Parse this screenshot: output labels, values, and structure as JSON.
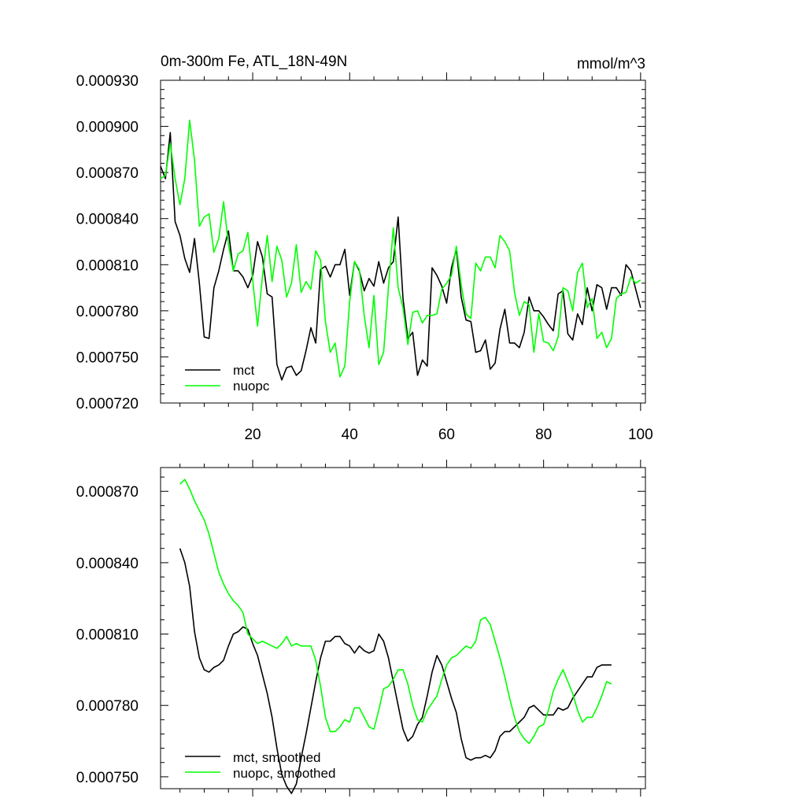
{
  "chart_data": [
    {
      "type": "line",
      "title": "0m-300m Fe, ATL_18N-49N",
      "units": "mmol/m^3",
      "xlabel": "",
      "ylabel": "",
      "xlim": [
        1,
        101
      ],
      "ylim": [
        0.00072,
        0.00093
      ],
      "yticks": [
        0.00072,
        0.00075,
        0.00078,
        0.00081,
        0.00084,
        0.00087,
        0.0009,
        0.00093
      ],
      "yticklabels": [
        "0.000720",
        "0.000750",
        "0.000780",
        "0.000810",
        "0.000840",
        "0.000870",
        "0.000900",
        "0.000930"
      ],
      "xticks": [
        20,
        40,
        60,
        80,
        100
      ],
      "xticklabels": [
        "20",
        "40",
        "60",
        "80",
        "100"
      ],
      "legend": "bottom-left",
      "grid": false,
      "series": [
        {
          "name": "mct",
          "color": "#000000",
          "values": [
            0.000874,
            0.000866,
            0.000896,
            0.000838,
            0.000829,
            0.000814,
            0.000805,
            0.000827,
            0.000798,
            0.000763,
            0.000762,
            0.000795,
            0.000806,
            0.00082,
            0.000832,
            0.000806,
            0.000806,
            0.000802,
            0.000795,
            0.000803,
            0.000825,
            0.000815,
            0.000791,
            0.000789,
            0.000745,
            0.000735,
            0.000743,
            0.000744,
            0.000738,
            0.000741,
            0.000754,
            0.000769,
            0.000759,
            0.000807,
            0.000809,
            0.000802,
            0.00081,
            0.00081,
            0.00082,
            0.00079,
            0.000812,
            0.000806,
            0.000793,
            0.000801,
            0.000796,
            0.000812,
            0.000798,
            0.000808,
            0.000812,
            0.000841,
            0.000788,
            0.000762,
            0.000766,
            0.000738,
            0.000748,
            0.000744,
            0.000808,
            0.000803,
            0.000796,
            0.000785,
            0.000808,
            0.00082,
            0.000789,
            0.000774,
            0.000773,
            0.000753,
            0.000754,
            0.000761,
            0.000742,
            0.000746,
            0.000768,
            0.000781,
            0.000759,
            0.000759,
            0.000756,
            0.000766,
            0.000789,
            0.00078,
            0.00078,
            0.000776,
            0.000771,
            0.000767,
            0.000791,
            0.000793,
            0.000765,
            0.000761,
            0.000778,
            0.000771,
            0.000795,
            0.00078,
            0.000797,
            0.000795,
            0.000781,
            0.000795,
            0.000795,
            0.00079,
            0.00081,
            0.000806,
            0.000794,
            0.000782
          ]
        },
        {
          "name": "nuopc",
          "color": "#00ff00",
          "values": [
            0.000866,
            0.000868,
            0.000889,
            0.000866,
            0.000849,
            0.000866,
            0.000904,
            0.000878,
            0.000835,
            0.000841,
            0.000843,
            0.000818,
            0.000827,
            0.000851,
            0.000823,
            0.000806,
            0.000817,
            0.000819,
            0.000831,
            0.0008,
            0.00077,
            0.000802,
            0.000829,
            0.000799,
            0.000822,
            0.000813,
            0.000789,
            0.000798,
            0.000823,
            0.000792,
            0.000799,
            0.000794,
            0.000819,
            0.000813,
            0.000773,
            0.000753,
            0.000759,
            0.000737,
            0.000744,
            0.000786,
            0.000812,
            0.000807,
            0.000777,
            0.000756,
            0.00079,
            0.000745,
            0.000753,
            0.000795,
            0.000834,
            0.000795,
            0.000782,
            0.000758,
            0.000779,
            0.00078,
            0.000772,
            0.000777,
            0.000777,
            0.000778,
            0.000794,
            0.000798,
            0.000803,
            0.000822,
            0.000797,
            0.000778,
            0.000775,
            0.000811,
            0.000806,
            0.000815,
            0.000815,
            0.000808,
            0.000829,
            0.000825,
            0.000819,
            0.000792,
            0.000777,
            0.000786,
            0.000784,
            0.000753,
            0.000778,
            0.00076,
            0.000759,
            0.000754,
            0.000763,
            0.000795,
            0.000793,
            0.00078,
            0.000805,
            0.000811,
            0.000782,
            0.000788,
            0.000762,
            0.000766,
            0.000756,
            0.000762,
            0.000788,
            0.000791,
            0.000792,
            0.000802,
            0.000798,
            0.0008
          ]
        }
      ]
    },
    {
      "type": "line",
      "title": "",
      "xlabel": "",
      "ylabel": "",
      "xlim": [
        1,
        101
      ],
      "ylim": [
        0.000745,
        0.00088
      ],
      "yticks": [
        0.00075,
        0.00078,
        0.00081,
        0.00084,
        0.00087
      ],
      "yticklabels": [
        "0.000750",
        "0.000780",
        "0.000810",
        "0.000840",
        "0.000870"
      ],
      "xticks": [
        20,
        40,
        60,
        80,
        100
      ],
      "legend": "bottom-left",
      "grid": false,
      "series": [
        {
          "name": "mct, smoothed",
          "color": "#000000",
          "x_start": 5,
          "values": [
            0.000846,
            0.00084,
            0.00083,
            0.000811,
            0.0008,
            0.000795,
            0.000794,
            0.000796,
            0.000797,
            0.000799,
            0.000805,
            0.00081,
            0.000811,
            0.000813,
            0.000812,
            0.000806,
            0.000801,
            0.000793,
            0.000785,
            0.000775,
            0.000762,
            0.000751,
            0.000746,
            0.000743,
            0.000747,
            0.000758,
            0.000768,
            0.000779,
            0.00079,
            0.0008,
            0.000807,
            0.000807,
            0.000809,
            0.000809,
            0.000806,
            0.000805,
            0.000802,
            0.000805,
            0.000803,
            0.000802,
            0.000803,
            0.00081,
            0.000807,
            0.0008,
            0.00079,
            0.00078,
            0.00077,
            0.000765,
            0.000767,
            0.000772,
            0.000775,
            0.000784,
            0.000794,
            0.000801,
            0.000797,
            0.00079,
            0.000783,
            0.000777,
            0.000766,
            0.000758,
            0.000757,
            0.000758,
            0.000758,
            0.000759,
            0.000758,
            0.000761,
            0.000767,
            0.000769,
            0.000769,
            0.000771,
            0.000773,
            0.000775,
            0.000779,
            0.00078,
            0.000778,
            0.000776,
            0.000776,
            0.000776,
            0.000779,
            0.000778,
            0.000779,
            0.000783,
            0.000786,
            0.000789,
            0.000792,
            0.000792,
            0.000796,
            0.000797,
            0.000797,
            0.000797
          ]
        },
        {
          "name": "nuopc, smoothed",
          "color": "#00ff00",
          "x_start": 5,
          "values": [
            0.000873,
            0.000875,
            0.000871,
            0.000866,
            0.000862,
            0.000858,
            0.000852,
            0.000844,
            0.000836,
            0.000831,
            0.000827,
            0.000824,
            0.000822,
            0.000819,
            0.00081,
            0.000808,
            0.000806,
            0.000807,
            0.000806,
            0.000805,
            0.000804,
            0.000806,
            0.000809,
            0.000805,
            0.000806,
            0.000805,
            0.000805,
            0.000805,
            0.000799,
            0.000788,
            0.000775,
            0.000769,
            0.000769,
            0.000771,
            0.000774,
            0.000773,
            0.000779,
            0.000779,
            0.000775,
            0.000771,
            0.00077,
            0.000778,
            0.000787,
            0.000788,
            0.000791,
            0.000795,
            0.000795,
            0.000789,
            0.00078,
            0.000774,
            0.000773,
            0.000778,
            0.000781,
            0.000784,
            0.000791,
            0.000797,
            0.0008,
            0.000801,
            0.000803,
            0.000805,
            0.000804,
            0.000807,
            0.000816,
            0.000817,
            0.000814,
            0.000807,
            0.0008,
            0.000792,
            0.000783,
            0.000775,
            0.000769,
            0.000766,
            0.000764,
            0.000767,
            0.000771,
            0.000772,
            0.000778,
            0.000786,
            0.000791,
            0.000795,
            0.00079,
            0.000785,
            0.000778,
            0.000773,
            0.000775,
            0.000775,
            0.000779,
            0.000784,
            0.00079,
            0.000789
          ]
        }
      ]
    }
  ]
}
